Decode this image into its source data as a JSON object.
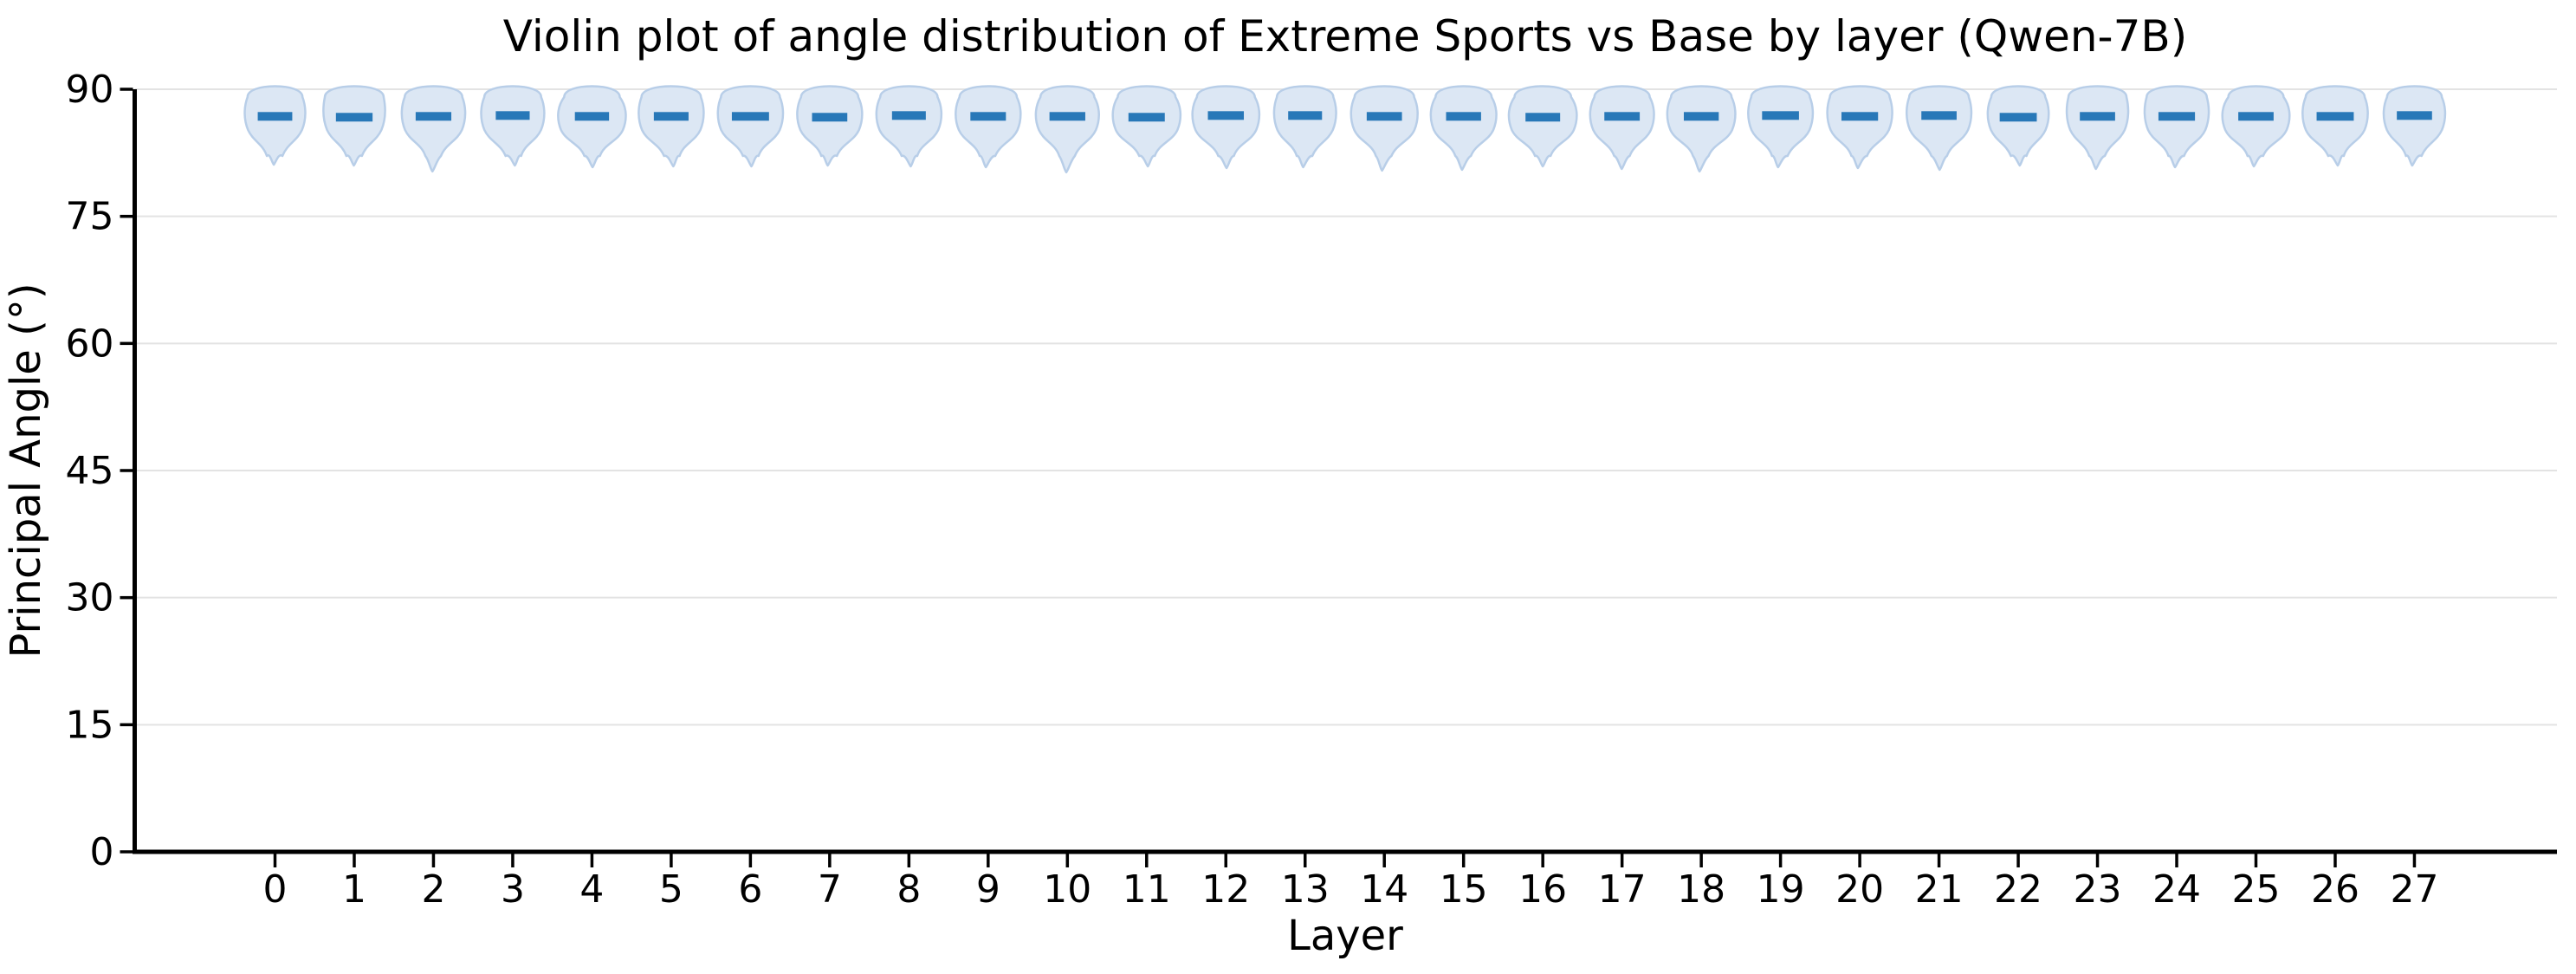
{
  "chart_data": {
    "type": "violin",
    "title": "Violin plot of angle distribution of Extreme Sports vs Base by layer (Qwen-7B)",
    "xlabel": "Layer",
    "ylabel": "Principal Angle (°)",
    "ylim": [
      0,
      90
    ],
    "yticks": [
      0,
      15,
      30,
      45,
      60,
      75,
      90
    ],
    "ytick_labels": [
      "0",
      "15",
      "30",
      "45",
      "60",
      "75",
      "90"
    ],
    "categories": [
      "0",
      "1",
      "2",
      "3",
      "4",
      "5",
      "6",
      "7",
      "8",
      "9",
      "10",
      "11",
      "12",
      "13",
      "14",
      "15",
      "16",
      "17",
      "18",
      "19",
      "20",
      "21",
      "22",
      "23",
      "24",
      "25",
      "26",
      "27"
    ],
    "grid": "horizontal-only",
    "legend": "none",
    "series": [
      {
        "name": "Extreme Sports vs Base",
        "max": [
          90,
          90,
          90,
          90,
          90,
          90,
          90,
          90,
          90,
          90,
          90,
          90,
          90,
          90,
          90,
          90,
          90,
          90,
          90,
          90,
          90,
          90,
          90,
          90,
          90,
          90,
          90,
          90
        ],
        "medians": [
          86.8,
          86.7,
          86.8,
          86.9,
          86.8,
          86.8,
          86.8,
          86.7,
          86.9,
          86.8,
          86.8,
          86.7,
          86.9,
          86.9,
          86.8,
          86.8,
          86.7,
          86.8,
          86.8,
          86.9,
          86.8,
          86.9,
          86.7,
          86.8,
          86.8,
          86.8,
          86.8,
          86.9
        ],
        "mins": [
          81.1,
          81.0,
          80.3,
          81.0,
          80.8,
          80.9,
          80.9,
          81.0,
          80.9,
          80.8,
          80.2,
          80.9,
          80.7,
          80.8,
          80.4,
          80.5,
          80.9,
          80.6,
          80.3,
          80.8,
          80.7,
          80.5,
          81.0,
          80.6,
          80.8,
          80.9,
          81.0,
          81.0
        ]
      }
    ]
  },
  "colors": {
    "violin_fill": "#dce7f4",
    "violin_stroke": "#b8cee8",
    "median": "#2878b8",
    "grid": "#e3e3e3",
    "axis": "#000000",
    "background": "#ffffff"
  }
}
